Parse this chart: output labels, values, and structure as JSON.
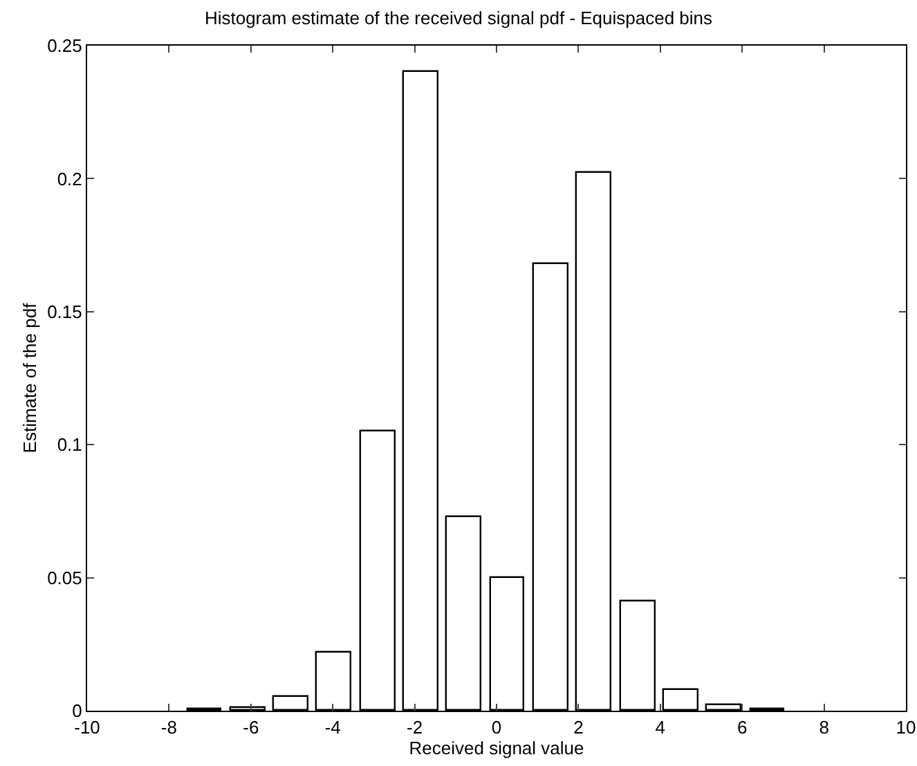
{
  "chart_data": {
    "type": "bar",
    "title": "Histogram estimate of the received signal pdf - Equispaced bins",
    "xlabel": "Received signal value",
    "ylabel": "Estimate of the pdf",
    "x": [
      -7.13,
      -6.07,
      -5.01,
      -3.96,
      -2.9,
      -1.84,
      -0.78,
      0.27,
      1.33,
      2.39,
      3.45,
      4.51,
      5.57,
      6.62
    ],
    "values": [
      0.0005,
      0.001,
      0.005,
      0.022,
      0.105,
      0.24,
      0.073,
      0.05,
      0.168,
      0.202,
      0.041,
      0.008,
      0.002,
      0.0003
    ],
    "color": "#ffffff",
    "xlim": [
      -10,
      10
    ],
    "xticks": [
      -10,
      -8,
      -6,
      -4,
      -2,
      0,
      2,
      4,
      6,
      8,
      10
    ],
    "ylim": [
      0,
      0.25
    ],
    "yticks": [
      0,
      0.05,
      0.1,
      0.15,
      0.2,
      0.25
    ],
    "grid": false
  }
}
